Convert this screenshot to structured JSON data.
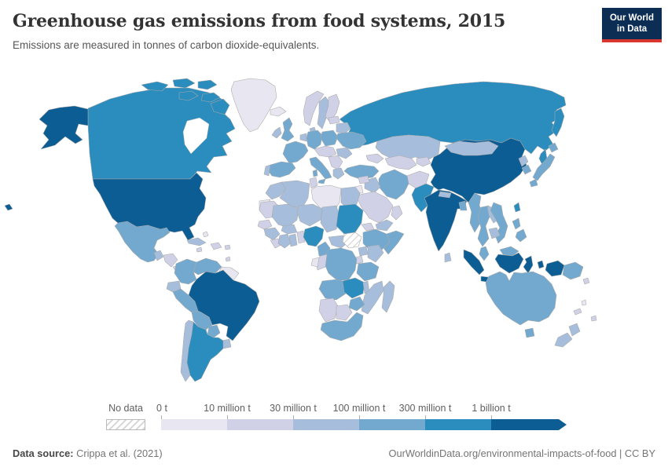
{
  "header": {
    "title": "Greenhouse gas emissions from food systems, 2015",
    "subtitle": "Emissions are measured in tonnes of carbon dioxide-equivalents.",
    "logo": {
      "line1": "Our World",
      "line2": "in Data",
      "bg_color": "#0d2e54",
      "accent_color": "#d8372f"
    }
  },
  "legend": {
    "no_data_label": "No data",
    "zero_label": "0 t",
    "tick_labels": [
      "10 million t",
      "30 million t",
      "100 million t",
      "300 million t",
      "1 billion t"
    ]
  },
  "footer": {
    "source_label": "Data source:",
    "source_value": " Crippa et al. (2021)",
    "right_text": "OurWorldinData.org/environmental-impacts-of-food | CC BY"
  },
  "chart_data": {
    "type": "choropleth_world_map",
    "title": "Greenhouse gas emissions from food systems, 2015",
    "unit": "tonnes of carbon dioxide-equivalents",
    "year": "2015",
    "legend_position": "bottom",
    "legend_bins": [
      {
        "range": "0 t – 10 million t",
        "color": "#e8e7f1"
      },
      {
        "range": "10 million t – 30 million t",
        "color": "#d0d1e6"
      },
      {
        "range": "30 million t – 100 million t",
        "color": "#a6bddb"
      },
      {
        "range": "100 million t – 300 million t",
        "color": "#74a9cf"
      },
      {
        "range": "300 million t – 1 billion t",
        "color": "#2b8cbe"
      },
      {
        "range": "1 billion t +",
        "color": "#0c5d94"
      }
    ],
    "no_data": [
      "South Sudan"
    ],
    "country_bins": {
      "United States": 6,
      "Canada": 5,
      "Greenland": 1,
      "Mexico": 4,
      "Guatemala": 3,
      "Honduras": 2,
      "Panama": 2,
      "Cuba": 3,
      "Haiti": 2,
      "Jamaica": 2,
      "Puerto Rico": 2,
      "Bahamas": 1,
      "Trinidad and Tobago": 2,
      "Colombia": 4,
      "Venezuela": 4,
      "Guyana": 1,
      "Ecuador": 3,
      "Peru": 4,
      "Brazil": 6,
      "Bolivia": 4,
      "Paraguay": 4,
      "Uruguay": 3,
      "Chile": 3,
      "Argentina": 5,
      "Iceland": 1,
      "Norway": 2,
      "Sweden": 3,
      "Finland": 2,
      "Denmark": 3,
      "United Kingdom": 4,
      "Ireland": 3,
      "France": 4,
      "Netherlands": 3,
      "Germany": 4,
      "Poland": 4,
      "Austria": 2,
      "Spain": 4,
      "Portugal": 3,
      "Italy": 4,
      "Serbia": 2,
      "Greece": 3,
      "Romania": 3,
      "Belarus": 3,
      "Lithuania": 2,
      "Ukraine": 4,
      "Turkey": 4,
      "Russia": 5,
      "Kazakhstan": 3,
      "Georgia": 2,
      "Turkmenistan": 2,
      "Kyrgyzstan": 2,
      "Afghanistan": 2,
      "Iran": 4,
      "Iraq": 3,
      "Syria": 2,
      "Jordan": 1,
      "Saudi Arabia": 2,
      "Yemen": 3,
      "Oman": 2,
      "Pakistan": 5,
      "India": 6,
      "Nepal": 3,
      "Bangladesh": 4,
      "Sri Lanka": 3,
      "China": 6,
      "Mongolia": 3,
      "North Korea": 3,
      "South Korea": 4,
      "Japan": 4,
      "Taiwan": 5,
      "Myanmar": 4,
      "Thailand": 4,
      "Laos": 3,
      "Vietnam": 4,
      "Cambodia": 3,
      "Malaysia": 4,
      "Philippines": 4,
      "Indonesia": 6,
      "Papua New Guinea": 4,
      "Solomon Islands": 2,
      "Vanuatu": 1,
      "Fiji": 2,
      "New Caledonia": 2,
      "Australia": 4,
      "New Zealand": 3,
      "Morocco": 3,
      "Western Sahara": 1,
      "Algeria": 3,
      "Tunisia": 2,
      "Libya": 1,
      "Egypt": 3,
      "Mauritania": 2,
      "Mali": 3,
      "Niger": 3,
      "Chad": 3,
      "Sudan": 5,
      "Eritrea": 2,
      "Ethiopia": 4,
      "Somalia": 4,
      "Senegal": 2,
      "Guinea": 3,
      "Sierra Leone": 2,
      "Cote d'Ivoire": 3,
      "Ghana": 3,
      "Burkina Faso": 3,
      "Benin": 2,
      "Nigeria": 5,
      "Cameroon": 4,
      "Central African Republic": 3,
      "Uganda": 3,
      "Kenya": 3,
      "Rwanda": 2,
      "Democratic Republic of Congo": 4,
      "Congo": 2,
      "Gabon": 1,
      "Angola": 4,
      "Zambia": 5,
      "Tanzania": 4,
      "Malawi": 3,
      "Mozambique": 3,
      "Zimbabwe": 4,
      "Namibia": 2,
      "Botswana": 2,
      "South Africa": 4,
      "Madagascar": 3
    }
  }
}
